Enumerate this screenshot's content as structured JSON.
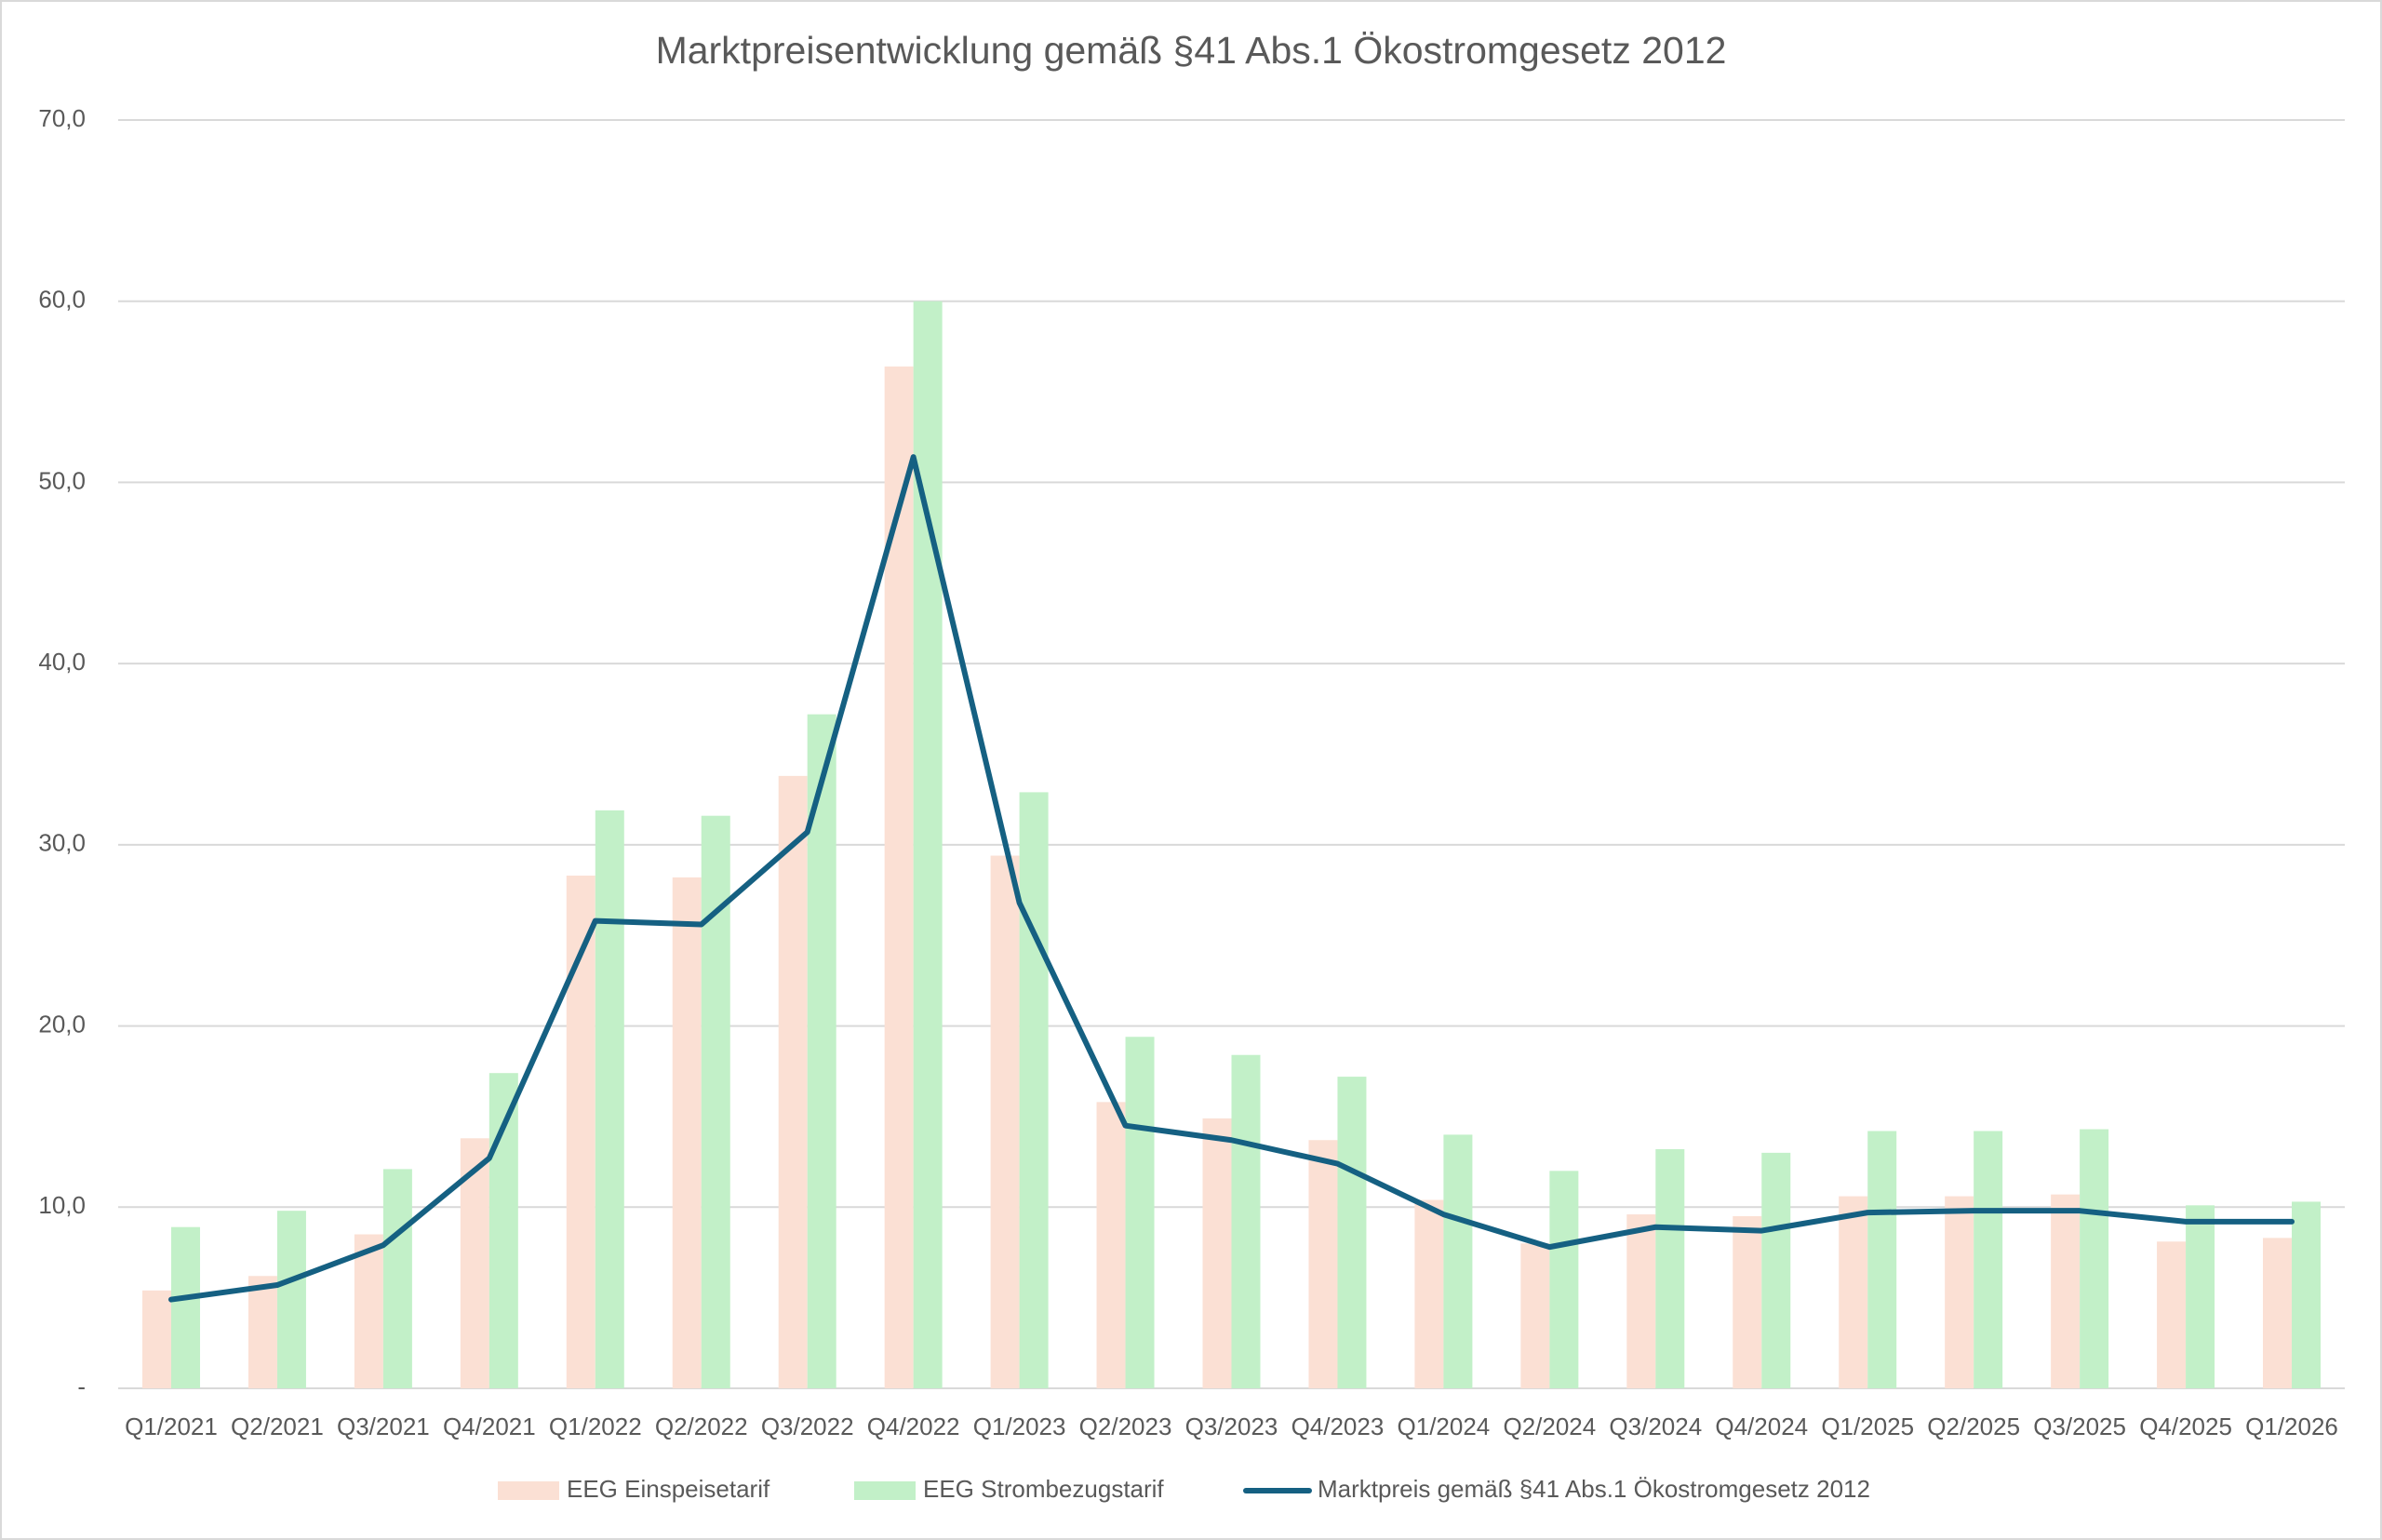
{
  "chart_data": {
    "type": "bar",
    "title": "Marktpreisentwicklung gemäß §41 Abs.1 Ökostromgesetz 2012",
    "categories": [
      "Q1/2021",
      "Q2/2021",
      "Q3/2021",
      "Q4/2021",
      "Q1/2022",
      "Q2/2022",
      "Q3/2022",
      "Q4/2022",
      "Q1/2023",
      "Q2/2023",
      "Q3/2023",
      "Q4/2023",
      "Q1/2024",
      "Q2/2024",
      "Q3/2024",
      "Q4/2024",
      "Q1/2025",
      "Q2/2025",
      "Q3/2025",
      "Q4/2025",
      "Q1/2026"
    ],
    "series": [
      {
        "name": "EEG Einspeisetarif",
        "color": "#fbe0d4",
        "values": [
          5.4,
          6.2,
          8.5,
          13.8,
          28.3,
          28.2,
          33.8,
          56.4,
          29.4,
          15.8,
          14.9,
          13.7,
          10.4,
          8.0,
          9.6,
          9.5,
          10.6,
          10.6,
          10.7,
          8.1,
          8.3
        ]
      },
      {
        "name": "EEG Strombezugstarif",
        "color": "#c2f0c8",
        "values": [
          8.9,
          9.8,
          12.1,
          17.4,
          31.9,
          31.6,
          37.2,
          60.0,
          32.9,
          19.4,
          18.4,
          17.2,
          14.0,
          12.0,
          13.2,
          13.0,
          14.2,
          14.2,
          14.3,
          10.1,
          10.3
        ]
      },
      {
        "name": "Marktpreis gemäß §41 Abs.1 Ökostromgesetz 2012",
        "color": "#156082",
        "type": "line",
        "values": [
          4.9,
          5.7,
          7.9,
          12.7,
          25.8,
          25.6,
          30.7,
          51.4,
          26.8,
          14.5,
          13.7,
          12.4,
          9.6,
          7.8,
          8.9,
          8.7,
          9.7,
          9.8,
          9.8,
          9.2,
          9.2
        ]
      }
    ],
    "ylim": [
      0,
      70
    ],
    "yticks": [
      {
        "value": 0,
        "label": "-"
      },
      {
        "value": 10,
        "label": "10,0"
      },
      {
        "value": 20,
        "label": "20,0"
      },
      {
        "value": 30,
        "label": "30,0"
      },
      {
        "value": 40,
        "label": "40,0"
      },
      {
        "value": 50,
        "label": "50,0"
      },
      {
        "value": 60,
        "label": "60,0"
      },
      {
        "value": 70,
        "label": "70,0"
      }
    ],
    "grid": true,
    "legend": "bottom"
  }
}
